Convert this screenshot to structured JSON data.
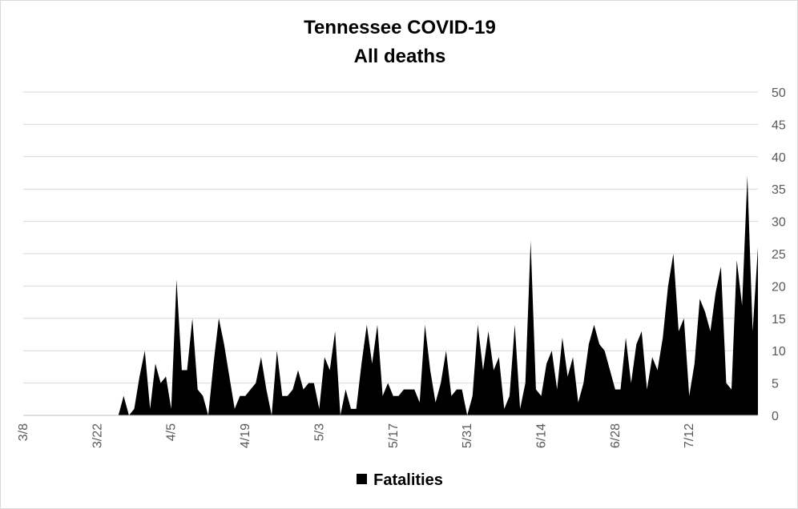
{
  "chart_data": {
    "type": "area",
    "title": "Tennessee COVID-19",
    "subtitle": "All deaths",
    "xlabel": "",
    "ylabel": "",
    "ylim": [
      0,
      50
    ],
    "yticks": [
      0,
      5,
      10,
      15,
      20,
      25,
      30,
      35,
      40,
      45,
      50
    ],
    "y_axis_side": "right",
    "grid": true,
    "legend_position": "bottom",
    "x_start": "3/8",
    "x_end": "7/25",
    "xtick_labels": [
      "3/8",
      "3/22",
      "4/5",
      "4/19",
      "5/3",
      "5/17",
      "5/31",
      "6/14",
      "6/28",
      "7/12"
    ],
    "series": [
      {
        "name": "Fatalities",
        "color": "#000000",
        "x": [
          "3/8",
          "3/9",
          "3/10",
          "3/11",
          "3/12",
          "3/13",
          "3/14",
          "3/15",
          "3/16",
          "3/17",
          "3/18",
          "3/19",
          "3/20",
          "3/21",
          "3/22",
          "3/23",
          "3/24",
          "3/25",
          "3/26",
          "3/27",
          "3/28",
          "3/29",
          "3/30",
          "3/31",
          "4/1",
          "4/2",
          "4/3",
          "4/4",
          "4/5",
          "4/6",
          "4/7",
          "4/8",
          "4/9",
          "4/10",
          "4/11",
          "4/12",
          "4/13",
          "4/14",
          "4/15",
          "4/16",
          "4/17",
          "4/18",
          "4/19",
          "4/20",
          "4/21",
          "4/22",
          "4/23",
          "4/24",
          "4/25",
          "4/26",
          "4/27",
          "4/28",
          "4/29",
          "4/30",
          "5/1",
          "5/2",
          "5/3",
          "5/4",
          "5/5",
          "5/6",
          "5/7",
          "5/8",
          "5/9",
          "5/10",
          "5/11",
          "5/12",
          "5/13",
          "5/14",
          "5/15",
          "5/16",
          "5/17",
          "5/18",
          "5/19",
          "5/20",
          "5/21",
          "5/22",
          "5/23",
          "5/24",
          "5/25",
          "5/26",
          "5/27",
          "5/28",
          "5/29",
          "5/30",
          "5/31",
          "6/1",
          "6/2",
          "6/3",
          "6/4",
          "6/5",
          "6/6",
          "6/7",
          "6/8",
          "6/9",
          "6/10",
          "6/11",
          "6/12",
          "6/13",
          "6/14",
          "6/15",
          "6/16",
          "6/17",
          "6/18",
          "6/19",
          "6/20",
          "6/21",
          "6/22",
          "6/23",
          "6/24",
          "6/25",
          "6/26",
          "6/27",
          "6/28",
          "6/29",
          "6/30",
          "7/1",
          "7/2",
          "7/3",
          "7/4",
          "7/5",
          "7/6",
          "7/7",
          "7/8",
          "7/9",
          "7/10",
          "7/11",
          "7/12",
          "7/13",
          "7/14",
          "7/15",
          "7/16",
          "7/17",
          "7/18",
          "7/19",
          "7/20",
          "7/21",
          "7/22",
          "7/23",
          "7/24",
          "7/25"
        ],
        "values": [
          0,
          0,
          0,
          0,
          0,
          0,
          0,
          0,
          0,
          0,
          0,
          0,
          0,
          0,
          0,
          0,
          0,
          0,
          0,
          3,
          0,
          1,
          6,
          10,
          1,
          8,
          5,
          6,
          1,
          21,
          7,
          7,
          15,
          4,
          3,
          0,
          8,
          15,
          11,
          6,
          1,
          3,
          3,
          4,
          5,
          9,
          4,
          0,
          10,
          3,
          3,
          4,
          7,
          4,
          5,
          5,
          1,
          9,
          7,
          13,
          0,
          4,
          1,
          1,
          8,
          14,
          8,
          14,
          3,
          5,
          3,
          3,
          4,
          4,
          4,
          2,
          14,
          7,
          2,
          5,
          10,
          3,
          4,
          4,
          0,
          3,
          14,
          7,
          13,
          7,
          9,
          1,
          3,
          14,
          1,
          5,
          27,
          4,
          3,
          8,
          10,
          4,
          12,
          6,
          9,
          2,
          5,
          11,
          14,
          11,
          10,
          7,
          4,
          4,
          12,
          5,
          11,
          13,
          4,
          9,
          7,
          12,
          20,
          25,
          13,
          15,
          3,
          8,
          18,
          16,
          13,
          19,
          23,
          5,
          4,
          24,
          17,
          37,
          13,
          26
        ]
      }
    ]
  }
}
